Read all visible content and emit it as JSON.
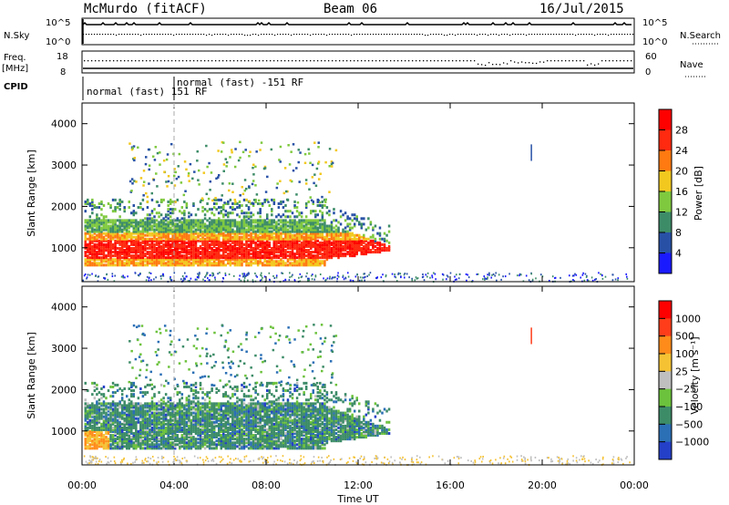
{
  "header": {
    "title": "McMurdo (fitACF)",
    "beam": "Beam 06",
    "date": "16/Jul/2015"
  },
  "top_panels": {
    "nsky_label": "N.Sky",
    "nsky_ticks": [
      "10^5",
      "10^0"
    ],
    "nsearch_label": "N.Search",
    "nsearch_ticks": [
      "10^5",
      "10^0"
    ],
    "freq_label_1": "Freq.",
    "freq_label_2": "[MHz]",
    "freq_ticks": [
      "18",
      "8"
    ],
    "nave_label": "Nave",
    "nave_ticks": [
      "60",
      "0"
    ],
    "cpid_label": "CPID",
    "cpid_1": "normal (fast) 151 RF",
    "cpid_2": "normal (fast) -151 RF"
  },
  "chart_data": [
    {
      "type": "heatmap",
      "name": "power",
      "ylabel": "Slant Range [km]",
      "ylim": [
        180,
        4500
      ],
      "xlim_hours": [
        0,
        24
      ],
      "yticks": [
        "4000",
        "3000",
        "2000",
        "1000"
      ],
      "colorbar_label": "Power [dB]",
      "colorbar_ticks": [
        "28",
        "24",
        "20",
        "16",
        "12",
        "8",
        "4"
      ],
      "colors": [
        "#1a1aff",
        "#2851a6",
        "#3d8c68",
        "#7fc93f",
        "#f2c81f",
        "#ff7a10",
        "#ff2a10",
        "#ff0000"
      ]
    },
    {
      "type": "heatmap",
      "name": "velocity",
      "ylabel": "Slant Range [km]",
      "ylim": [
        180,
        4500
      ],
      "xlim_hours": [
        0,
        24
      ],
      "yticks": [
        "4000",
        "3000",
        "2000",
        "1000"
      ],
      "colorbar_label": "Velocity [m s⁻¹]",
      "colorbar_ticks": [
        "1000",
        "500",
        "100",
        "25",
        "−25",
        "−100",
        "−500",
        "−1000"
      ],
      "colors": [
        "#2440c8",
        "#2b6fb5",
        "#3d8c68",
        "#6cc23c",
        "#bfbfbf",
        "#f5c233",
        "#ff8c1a",
        "#ff3d1a",
        "#ff0000"
      ]
    }
  ],
  "xaxis": {
    "label": "Time UT",
    "ticks": [
      "00:00",
      "04:00",
      "08:00",
      "12:00",
      "16:00",
      "20:00",
      "00:00"
    ]
  }
}
